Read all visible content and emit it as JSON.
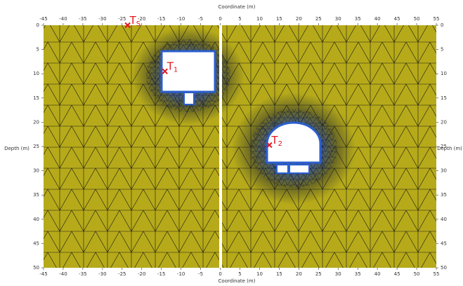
{
  "chart_data": {
    "type": "mesh",
    "x_label": "Coordinate (m)",
    "y_label": "Depth (m)",
    "xlim": [
      -45,
      55
    ],
    "xticks": [
      -45,
      -40,
      -35,
      -30,
      -25,
      -20,
      -15,
      -10,
      -5,
      0,
      5,
      10,
      15,
      20,
      25,
      30,
      35,
      40,
      45,
      50,
      55
    ],
    "ylim": [
      0,
      50
    ],
    "yticks": [
      0,
      5,
      10,
      15,
      20,
      25,
      30,
      35,
      40,
      45,
      50
    ],
    "y_inverted": true,
    "color": "#b6aa1a",
    "marker_color": "#e0191f",
    "points": [
      {
        "label": "T",
        "sub": "S",
        "x": -23.6,
        "y": 0
      },
      {
        "label": "T",
        "sub": "1",
        "x": -14.1,
        "y": 9.5
      },
      {
        "label": "T",
        "sub": "2",
        "x": 12.5,
        "y": 24.7
      }
    ]
  }
}
